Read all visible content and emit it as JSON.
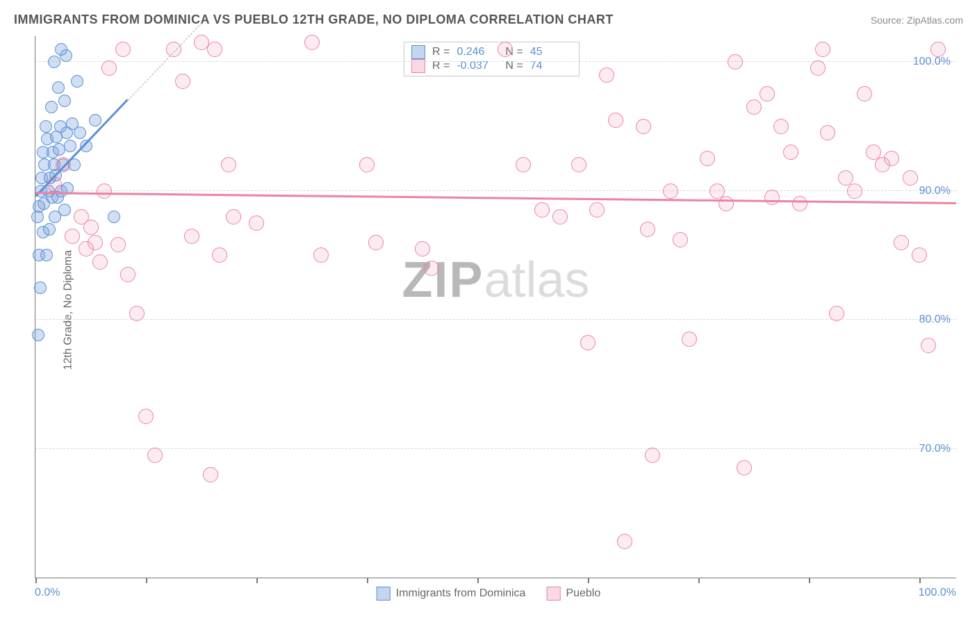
{
  "title": "IMMIGRANTS FROM DOMINICA VS PUEBLO 12TH GRADE, NO DIPLOMA CORRELATION CHART",
  "source": "Source: ZipAtlas.com",
  "watermark": {
    "part1": "ZIP",
    "part2": "atlas"
  },
  "chart": {
    "type": "scatter",
    "background_color": "#ffffff",
    "axis_color": "#777777",
    "grid_color": "#d8d8d8",
    "text_color": "#666666",
    "value_color": "#5b8fd6",
    "xlim": [
      0,
      100
    ],
    "ylim": [
      60,
      102
    ],
    "x_ticks_pct": [
      0,
      12,
      24,
      36,
      48,
      60,
      72,
      84,
      96
    ],
    "y_gridlines": [
      70,
      80,
      90,
      100
    ],
    "y_tick_labels": [
      "70.0%",
      "80.0%",
      "90.0%",
      "100.0%"
    ],
    "x_min_label": "0.0%",
    "x_max_label": "100.0%",
    "y_axis_title": "12th Grade, No Diploma",
    "point_radius_blue": 9,
    "point_radius_pink": 11,
    "series": [
      {
        "name": "Immigrants from Dominica",
        "color": "#5b8fd6",
        "fill": "rgba(121,163,220,0.35)",
        "R": "0.246",
        "N": "45",
        "trend": {
          "x1": 0,
          "y1": 89.5,
          "x2": 10,
          "y2": 97,
          "dash_to_x": 18,
          "dash_to_y": 103
        },
        "points": [
          [
            0.3,
            78.8
          ],
          [
            0.5,
            82.5
          ],
          [
            0.4,
            85
          ],
          [
            1.2,
            85
          ],
          [
            0.8,
            86.8
          ],
          [
            1.5,
            87
          ],
          [
            0.2,
            88
          ],
          [
            2.1,
            88
          ],
          [
            3.2,
            88.5
          ],
          [
            0.9,
            89
          ],
          [
            1.8,
            89.5
          ],
          [
            2.4,
            89.5
          ],
          [
            0.6,
            90
          ],
          [
            1.4,
            90
          ],
          [
            2.8,
            90
          ],
          [
            3.5,
            90.2
          ],
          [
            0.7,
            91
          ],
          [
            1.6,
            91
          ],
          [
            2.2,
            91.2
          ],
          [
            1.0,
            92
          ],
          [
            2.0,
            92
          ],
          [
            3.0,
            92
          ],
          [
            4.2,
            92
          ],
          [
            0.8,
            93
          ],
          [
            1.9,
            93
          ],
          [
            2.6,
            93.2
          ],
          [
            3.8,
            93.5
          ],
          [
            5.5,
            93.5
          ],
          [
            1.3,
            94
          ],
          [
            2.3,
            94.2
          ],
          [
            3.4,
            94.5
          ],
          [
            4.8,
            94.5
          ],
          [
            1.1,
            95
          ],
          [
            2.7,
            95
          ],
          [
            4.0,
            95.2
          ],
          [
            6.5,
            95.5
          ],
          [
            1.7,
            96.5
          ],
          [
            3.2,
            97
          ],
          [
            2.5,
            98
          ],
          [
            4.5,
            98.5
          ],
          [
            2.0,
            100
          ],
          [
            3.3,
            100.5
          ],
          [
            2.8,
            101
          ],
          [
            0.4,
            88.8
          ],
          [
            8.5,
            88.0
          ]
        ]
      },
      {
        "name": "Pueblo",
        "color": "#ec82a4",
        "fill": "rgba(236,130,164,0.15)",
        "R": "-0.037",
        "N": "74",
        "trend": {
          "x1": 0,
          "y1": 89.8,
          "x2": 100,
          "y2": 89.0
        },
        "points": [
          [
            2,
            90.5
          ],
          [
            3,
            92
          ],
          [
            4,
            86.5
          ],
          [
            5,
            88
          ],
          [
            5.5,
            85.5
          ],
          [
            6,
            87.2
          ],
          [
            6.5,
            86
          ],
          [
            7,
            84.5
          ],
          [
            7.5,
            90
          ],
          [
            8,
            99.5
          ],
          [
            9,
            85.8
          ],
          [
            9.5,
            101
          ],
          [
            10,
            83.5
          ],
          [
            11,
            80.5
          ],
          [
            12,
            72.5
          ],
          [
            13,
            69.5
          ],
          [
            15,
            101
          ],
          [
            16,
            98.5
          ],
          [
            17,
            86.5
          ],
          [
            18,
            101.5
          ],
          [
            19,
            68
          ],
          [
            19.5,
            101
          ],
          [
            20,
            85
          ],
          [
            21,
            92
          ],
          [
            21.5,
            88
          ],
          [
            24,
            87.5
          ],
          [
            30,
            101.5
          ],
          [
            31,
            85
          ],
          [
            36,
            92
          ],
          [
            37,
            86
          ],
          [
            42,
            85.5
          ],
          [
            43,
            84
          ],
          [
            51,
            101
          ],
          [
            53,
            92
          ],
          [
            55,
            88.5
          ],
          [
            57,
            88
          ],
          [
            59,
            92
          ],
          [
            60,
            78.2
          ],
          [
            61,
            88.5
          ],
          [
            62,
            99
          ],
          [
            63,
            95.5
          ],
          [
            64,
            62.8
          ],
          [
            66,
            95
          ],
          [
            66.5,
            87
          ],
          [
            67,
            69.5
          ],
          [
            69,
            90
          ],
          [
            70,
            86.2
          ],
          [
            71,
            78.5
          ],
          [
            73,
            92.5
          ],
          [
            74,
            90
          ],
          [
            75,
            89
          ],
          [
            76,
            100
          ],
          [
            77,
            68.5
          ],
          [
            78,
            96.5
          ],
          [
            79.5,
            97.5
          ],
          [
            80,
            89.5
          ],
          [
            81,
            95
          ],
          [
            82,
            93
          ],
          [
            83,
            89
          ],
          [
            85,
            99.5
          ],
          [
            85.5,
            101
          ],
          [
            86,
            94.5
          ],
          [
            87,
            80.5
          ],
          [
            88,
            91
          ],
          [
            89,
            90
          ],
          [
            90,
            97.5
          ],
          [
            91,
            93
          ],
          [
            92,
            92
          ],
          [
            93,
            92.5
          ],
          [
            94,
            86
          ],
          [
            95,
            91
          ],
          [
            96,
            85
          ],
          [
            97,
            78
          ],
          [
            98,
            101
          ]
        ]
      }
    ]
  },
  "bottom_legend": [
    {
      "swatch": "blue",
      "label": "Immigrants from Dominica"
    },
    {
      "swatch": "pink",
      "label": "Pueblo"
    }
  ]
}
